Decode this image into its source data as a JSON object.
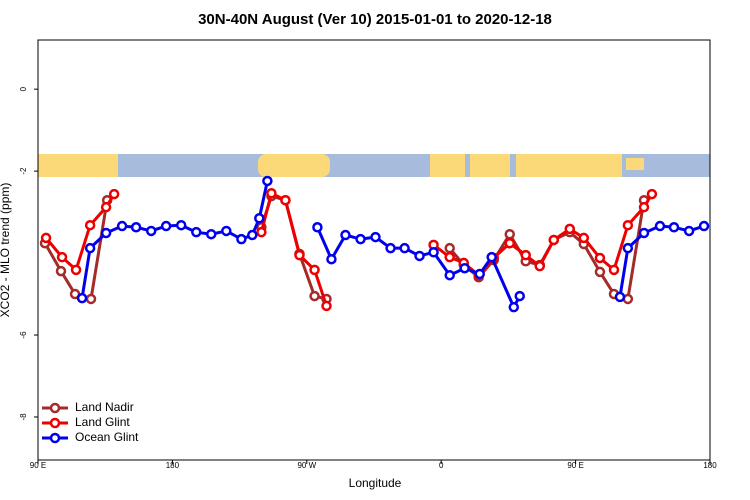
{
  "chart_data": {
    "type": "line",
    "title": "30N-40N August (Ver 10)   2015-01-01 to 2020-12-18",
    "x_label": "Longitude",
    "y_label": "XCO2 - MLO trend (ppm)",
    "xlim": [
      90,
      540
    ],
    "ylim": [
      -9.05,
      1.2
    ],
    "xticks": [
      {
        "value": 90,
        "label": "90 E"
      },
      180,
      {
        "value": 270,
        "label": "90 W"
      },
      {
        "value": 360,
        "label": "0"
      },
      {
        "value": 450,
        "label": "90 E"
      },
      {
        "value": 540,
        "label": "180"
      }
    ],
    "yticks": [
      0,
      -2,
      -6,
      -8
    ],
    "legend": "bottom-left",
    "series": [
      {
        "name": "Land Nadir",
        "color": "#a52a2a",
        "x": [
          94.7,
          105.4,
          114.8,
          125.5,
          136.3,
          null,
          239.6,
          246.3,
          255.7,
          265.1,
          275.2,
          283.2,
          null,
          365.7,
          375.1,
          385.1,
          395.2,
          405.9,
          416.6,
          426.0,
          435.4,
          446.1,
          455.5,
          466.3,
          475.7,
          485.0,
          495.8
        ],
        "values": [
          -3.76,
          -4.44,
          -5.0,
          -5.12,
          -2.71,
          null,
          -3.37,
          -2.61,
          -2.71,
          -4.02,
          -5.05,
          -5.12,
          null,
          -3.88,
          -4.29,
          -4.59,
          -4.17,
          -3.54,
          -4.2,
          -4.29,
          -3.68,
          -3.49,
          -3.78,
          -4.46,
          -5.0,
          -5.12,
          -2.71
        ]
      },
      {
        "name": "Land Glint",
        "color": "#ee0000",
        "x": [
          95.4,
          106.1,
          115.5,
          124.9,
          135.6,
          141.0,
          null,
          239.6,
          246.3,
          255.7,
          265.1,
          275.2,
          283.2,
          null,
          354.9,
          365.7,
          375.1,
          385.1,
          395.2,
          405.9,
          416.6,
          426.0,
          435.4,
          446.1,
          455.5,
          466.3,
          475.7,
          485.0,
          495.8,
          501.1
        ],
        "values": [
          -3.63,
          -4.1,
          -4.41,
          -3.32,
          -2.88,
          -2.56,
          null,
          -3.49,
          -2.54,
          -2.71,
          -4.05,
          -4.41,
          -5.29,
          null,
          -3.8,
          -4.1,
          -4.24,
          -4.54,
          -4.12,
          -3.76,
          -4.05,
          -4.32,
          -3.68,
          -3.41,
          -3.63,
          -4.12,
          -4.41,
          -3.32,
          -2.88,
          -2.56
        ]
      },
      {
        "name": "Ocean Glint",
        "color": "#0000ee",
        "x": [
          119.5,
          124.9,
          135.6,
          146.3,
          155.7,
          165.8,
          175.8,
          185.9,
          196.0,
          206.0,
          216.1,
          226.2,
          233.5,
          238.2,
          243.6,
          null,
          277.1,
          286.5,
          295.9,
          306.0,
          316.0,
          326.1,
          335.5,
          345.5,
          354.9,
          365.7,
          375.7,
          385.8,
          393.8,
          408.6,
          412.6,
          null,
          479.7,
          485.0,
          495.8,
          506.5,
          515.9,
          526.0,
          536.0
        ],
        "values": [
          -5.1,
          -3.88,
          -3.51,
          -3.34,
          -3.37,
          -3.46,
          -3.34,
          -3.32,
          -3.49,
          -3.54,
          -3.46,
          -3.66,
          -3.56,
          -3.15,
          -2.24,
          null,
          -3.37,
          -4.15,
          -3.56,
          -3.66,
          -3.61,
          -3.88,
          -3.88,
          -4.07,
          -3.98,
          -4.54,
          -4.37,
          -4.51,
          -4.1,
          -5.32,
          -5.05,
          null,
          -5.07,
          -3.88,
          -3.51,
          -3.34,
          -3.37,
          -3.46,
          -3.34
        ]
      }
    ]
  }
}
